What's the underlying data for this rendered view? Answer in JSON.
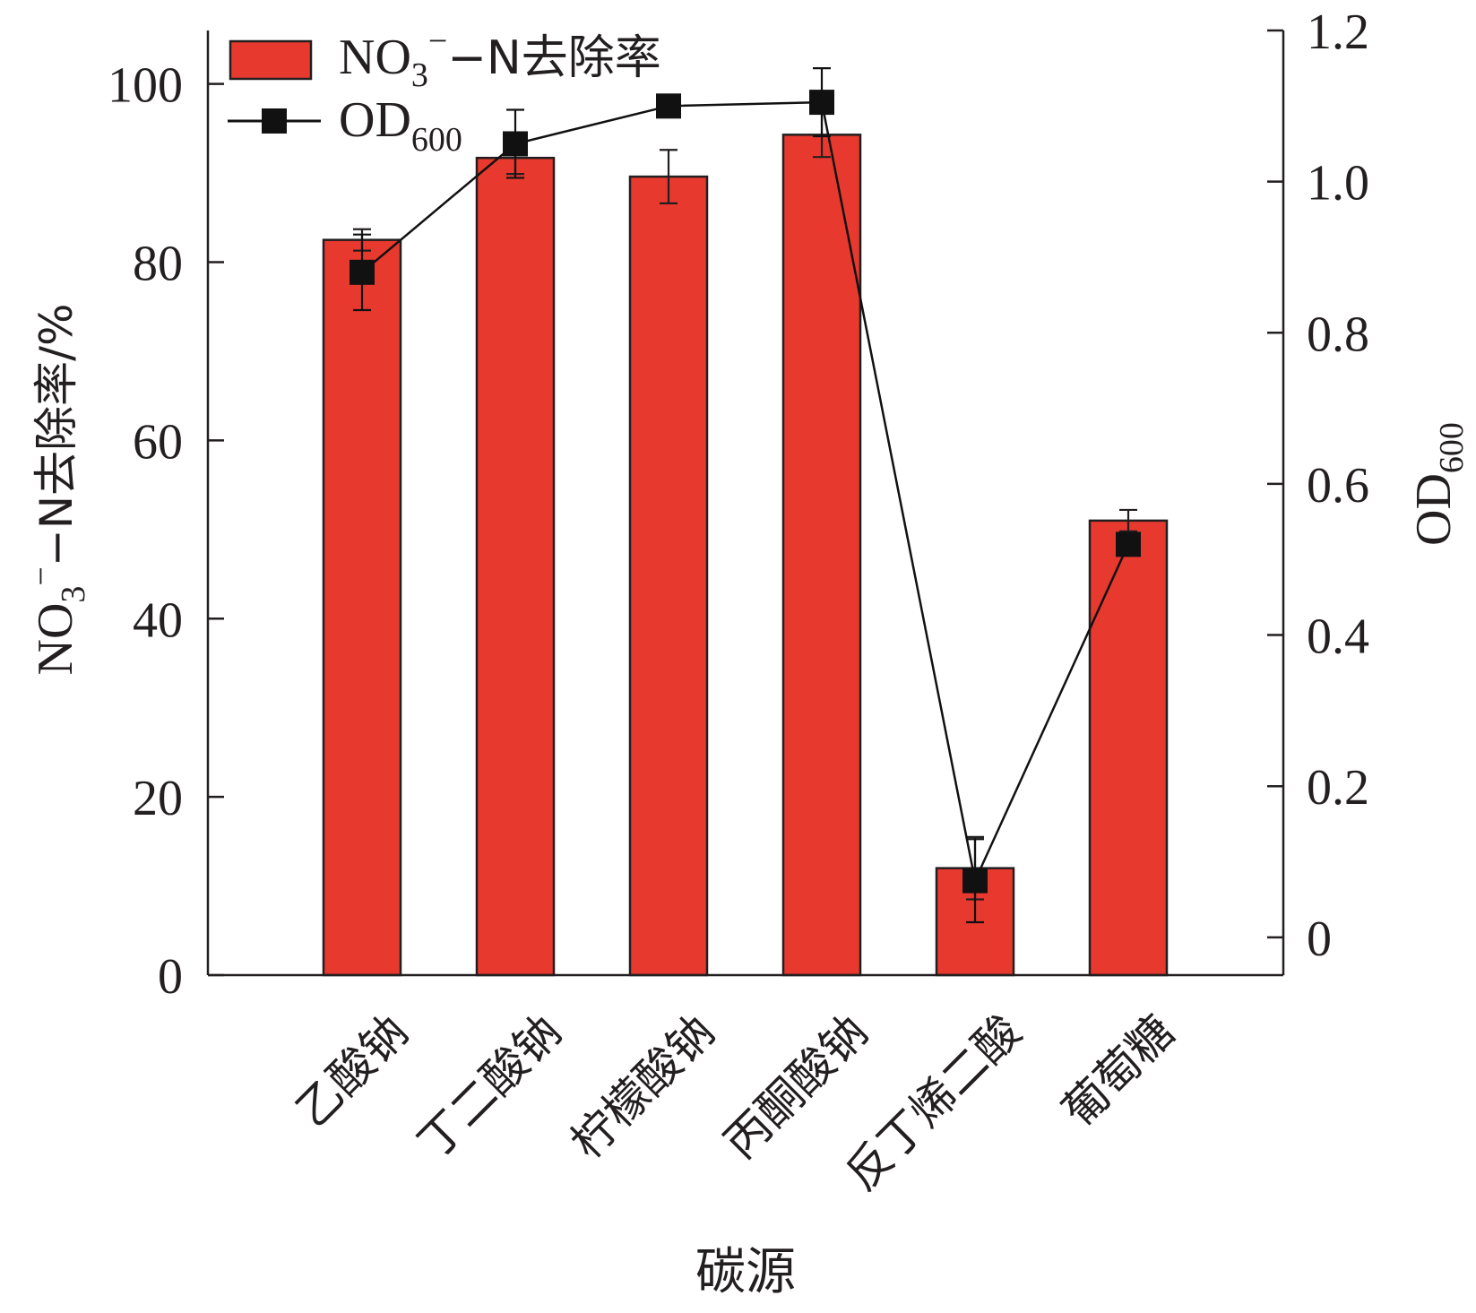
{
  "chart_data": {
    "type": "bar+line",
    "categories": [
      "乙酸钠",
      "丁二酸钠",
      "柠檬酸钠",
      "丙酮酸钠",
      "反丁烯二酸",
      "葡萄糖"
    ],
    "series": [
      {
        "name": "NO3−-N去除率",
        "kind": "bar",
        "axis": "left",
        "values": [
          82.5,
          91.7,
          89.6,
          94.3,
          12.0,
          51.0
        ],
        "errors": [
          1.2,
          1.8,
          3.0,
          2.5,
          3.5,
          1.2
        ],
        "color": "#e8392f"
      },
      {
        "name": "OD600",
        "kind": "line",
        "axis": "right",
        "values": [
          0.88,
          1.05,
          1.1,
          1.105,
          0.075,
          0.52
        ],
        "errors": [
          0.05,
          0.045,
          0.0,
          0.045,
          0.055,
          0.0
        ],
        "color": "#111111"
      }
    ],
    "y_left": {
      "title_main": "NO",
      "title_sub": "3",
      "title_sup": "−",
      "title_rest": "−N去除率/%",
      "ticks": [
        "0",
        "20",
        "40",
        "60",
        "80",
        "100"
      ],
      "ylim": [
        0,
        106
      ]
    },
    "y_right": {
      "title_main": "OD",
      "title_sub": "600",
      "ticks": [
        "0",
        "0.2",
        "0.4",
        "0.6",
        "0.8",
        "1.0",
        "1.2"
      ],
      "ylim": [
        -0.05,
        1.2
      ]
    },
    "xlabel": "碳源",
    "legend": {
      "placement": "top-left",
      "bar_label_main": "NO",
      "bar_label_sub": "3",
      "bar_label_sup": "−",
      "bar_label_rest": "−N去除率",
      "line_label_main": "OD",
      "line_label_sub": "600"
    },
    "grid": false
  }
}
